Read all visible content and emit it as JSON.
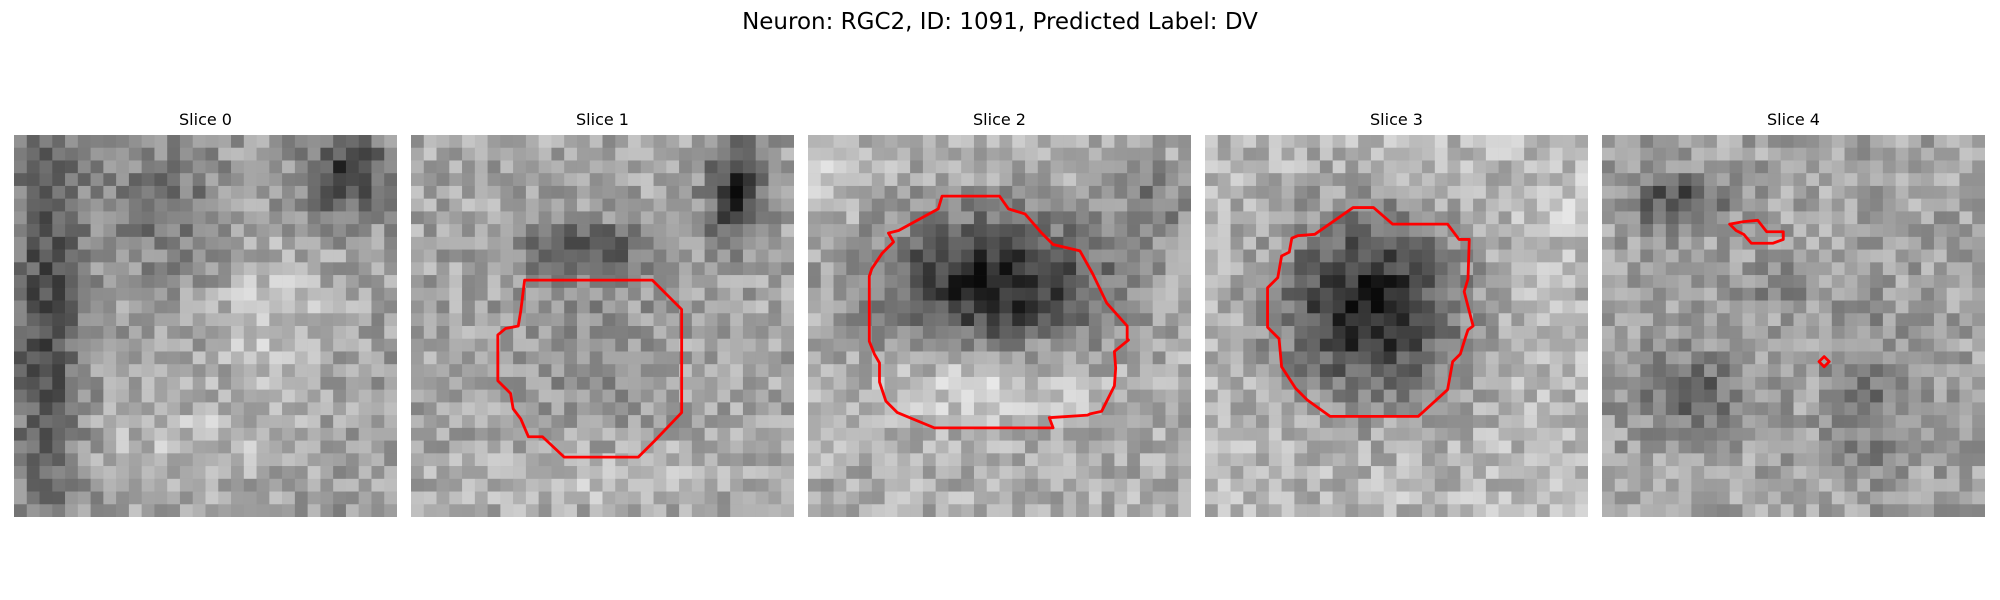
{
  "figure": {
    "title": "Neuron: RGC2, ID: 1091, Predicted Label: DV"
  },
  "slices": [
    {
      "title": "Slice 0",
      "image": "noisy-grayscale-microscopy-patch",
      "contours": []
    },
    {
      "title": "Slice 1",
      "image": "noisy-grayscale-microscopy-patch",
      "contours": [
        "red-cell-outline"
      ]
    },
    {
      "title": "Slice 2",
      "image": "noisy-grayscale-microscopy-patch",
      "contours": [
        "red-cell-outline"
      ]
    },
    {
      "title": "Slice 3",
      "image": "noisy-grayscale-microscopy-patch",
      "contours": [
        "red-cell-outline"
      ]
    },
    {
      "title": "Slice 4",
      "image": "noisy-grayscale-microscopy-patch",
      "contours": [
        "red-cell-outline",
        "red-cell-outline"
      ]
    }
  ],
  "colors": {
    "contour": "#ff0000",
    "background": "#ffffff"
  }
}
